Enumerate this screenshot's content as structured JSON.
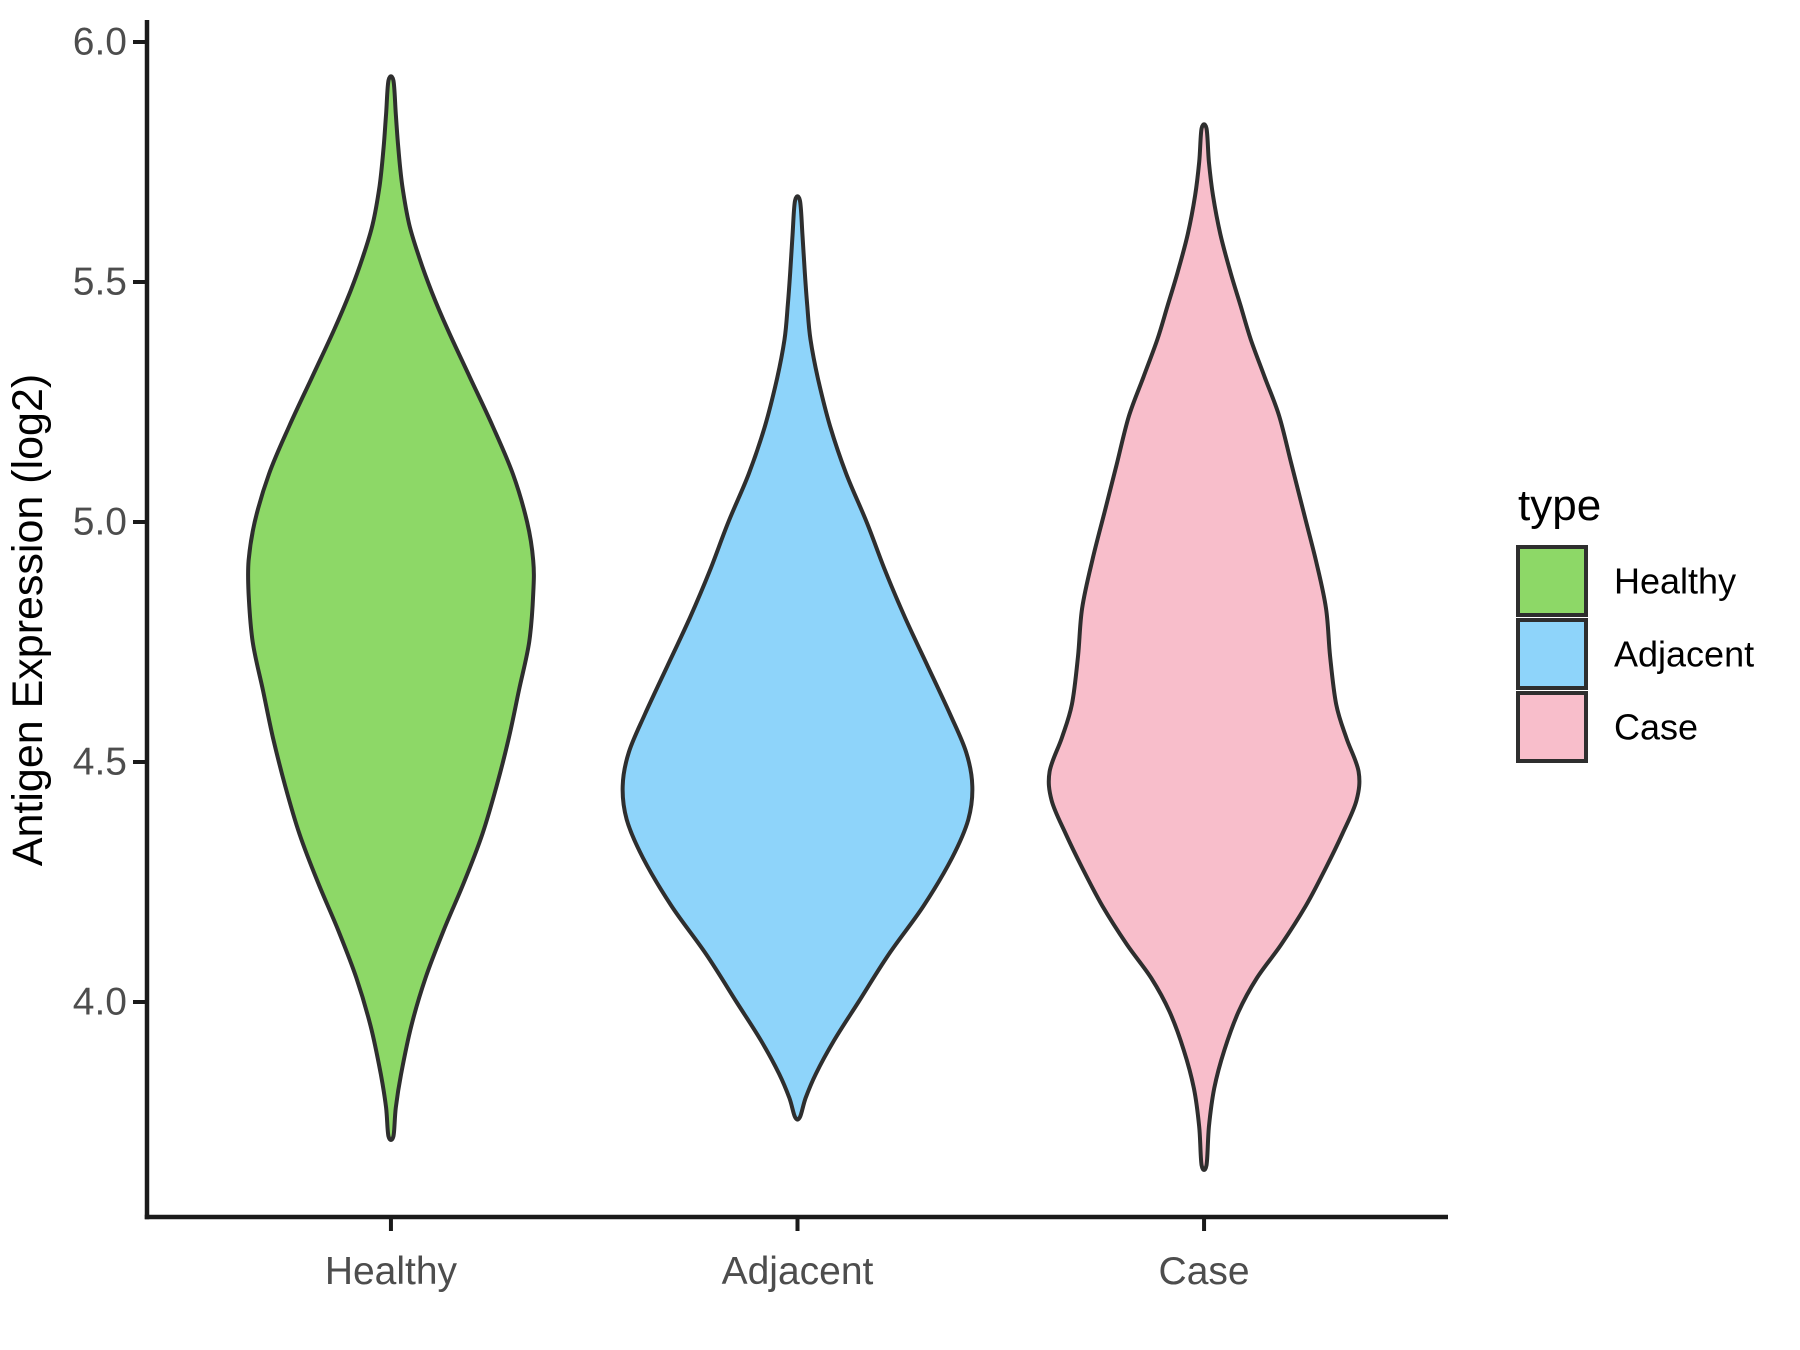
{
  "chart_data": {
    "type": "violin",
    "title": "",
    "xlabel": "",
    "ylabel": "Antigen Expression (log2)",
    "categories": [
      "Healthy",
      "Adjacent",
      "Case"
    ],
    "y_ticks": [
      {
        "value": 6.0,
        "label": "6.0"
      },
      {
        "value": 5.5,
        "label": "5.5"
      },
      {
        "value": 5.0,
        "label": "5.0"
      },
      {
        "value": 4.5,
        "label": "4.5"
      },
      {
        "value": 4.0,
        "label": "4.0"
      }
    ],
    "ylim": [
      3.55,
      6.05
    ],
    "grid": false,
    "legend": {
      "title": "type",
      "position": "right",
      "items": [
        {
          "label": "Healthy",
          "color": "#8DD867"
        },
        {
          "label": "Adjacent",
          "color": "#8ED4FA"
        },
        {
          "label": "Case",
          "color": "#F8BECB"
        }
      ]
    },
    "series": [
      {
        "name": "Healthy",
        "fill": "#8DD867",
        "outline": "#2E2E2E",
        "value_range": [
          3.72,
          5.92
        ],
        "peak_value": 4.9,
        "density_profile": [
          [
            5.92,
            0.006
          ],
          [
            5.85,
            0.012
          ],
          [
            5.78,
            0.018
          ],
          [
            5.7,
            0.028
          ],
          [
            5.62,
            0.045
          ],
          [
            5.55,
            0.07
          ],
          [
            5.48,
            0.1
          ],
          [
            5.4,
            0.14
          ],
          [
            5.3,
            0.195
          ],
          [
            5.2,
            0.25
          ],
          [
            5.1,
            0.3
          ],
          [
            5.0,
            0.335
          ],
          [
            4.92,
            0.35
          ],
          [
            4.85,
            0.35
          ],
          [
            4.75,
            0.34
          ],
          [
            4.65,
            0.315
          ],
          [
            4.55,
            0.29
          ],
          [
            4.45,
            0.26
          ],
          [
            4.35,
            0.225
          ],
          [
            4.25,
            0.18
          ],
          [
            4.15,
            0.13
          ],
          [
            4.05,
            0.085
          ],
          [
            3.95,
            0.05
          ],
          [
            3.85,
            0.025
          ],
          [
            3.78,
            0.012
          ],
          [
            3.72,
            0.006
          ]
        ]
      },
      {
        "name": "Adjacent",
        "fill": "#8ED4FA",
        "outline": "#2E2E2E",
        "value_range": [
          3.76,
          5.67
        ],
        "peak_value": 4.45,
        "density_profile": [
          [
            5.67,
            0.006
          ],
          [
            5.6,
            0.012
          ],
          [
            5.52,
            0.018
          ],
          [
            5.45,
            0.024
          ],
          [
            5.38,
            0.032
          ],
          [
            5.3,
            0.05
          ],
          [
            5.2,
            0.08
          ],
          [
            5.1,
            0.12
          ],
          [
            5.0,
            0.17
          ],
          [
            4.9,
            0.215
          ],
          [
            4.8,
            0.265
          ],
          [
            4.7,
            0.32
          ],
          [
            4.6,
            0.375
          ],
          [
            4.52,
            0.415
          ],
          [
            4.45,
            0.43
          ],
          [
            4.38,
            0.42
          ],
          [
            4.3,
            0.38
          ],
          [
            4.2,
            0.31
          ],
          [
            4.1,
            0.225
          ],
          [
            4.0,
            0.15
          ],
          [
            3.92,
            0.09
          ],
          [
            3.85,
            0.045
          ],
          [
            3.8,
            0.02
          ],
          [
            3.76,
            0.006
          ]
        ]
      },
      {
        "name": "Case",
        "fill": "#F8BECB",
        "outline": "#2E2E2E",
        "value_range": [
          3.66,
          5.82
        ],
        "peak_value": 4.47,
        "density_profile": [
          [
            5.82,
            0.006
          ],
          [
            5.75,
            0.012
          ],
          [
            5.68,
            0.022
          ],
          [
            5.6,
            0.04
          ],
          [
            5.52,
            0.065
          ],
          [
            5.45,
            0.09
          ],
          [
            5.38,
            0.115
          ],
          [
            5.3,
            0.15
          ],
          [
            5.22,
            0.185
          ],
          [
            5.12,
            0.215
          ],
          [
            5.02,
            0.245
          ],
          [
            4.92,
            0.275
          ],
          [
            4.82,
            0.3
          ],
          [
            4.72,
            0.31
          ],
          [
            4.62,
            0.325
          ],
          [
            4.55,
            0.35
          ],
          [
            4.48,
            0.38
          ],
          [
            4.42,
            0.375
          ],
          [
            4.35,
            0.34
          ],
          [
            4.28,
            0.3
          ],
          [
            4.2,
            0.25
          ],
          [
            4.12,
            0.19
          ],
          [
            4.05,
            0.13
          ],
          [
            3.98,
            0.085
          ],
          [
            3.9,
            0.05
          ],
          [
            3.82,
            0.025
          ],
          [
            3.74,
            0.012
          ],
          [
            3.66,
            0.006
          ]
        ]
      }
    ]
  },
  "style": {
    "background": "#FFFFFF",
    "axis_color": "#1A1A1A",
    "tick_label_color": "#4D4D4D",
    "text_color": "#000000",
    "violin_outline_color": "#2E2E2E"
  }
}
